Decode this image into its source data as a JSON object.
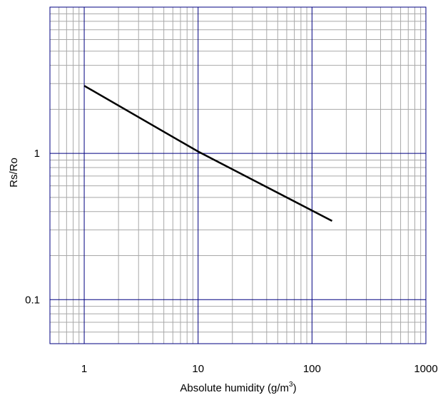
{
  "chart_data": {
    "type": "line",
    "title": "",
    "xlabel": "Absolute humidity (g/m",
    "xlabel_sup": "3",
    "xlabel_end": ")",
    "ylabel": "Rs/Ro",
    "x_scale": "log",
    "y_scale": "log",
    "xlim": [
      0.5,
      1000
    ],
    "ylim": [
      0.05,
      10
    ],
    "grid": true,
    "legend": "none",
    "x_ticks": [
      {
        "value": 1,
        "label": "1"
      },
      {
        "value": 10,
        "label": "10"
      },
      {
        "value": 100,
        "label": "100"
      },
      {
        "value": 1000,
        "label": "1000"
      }
    ],
    "y_ticks": [
      {
        "value": 1,
        "label": "1"
      },
      {
        "value": 0.1,
        "label": "0.1"
      }
    ],
    "series": [
      {
        "x": [
          1,
          10,
          150
        ],
        "y": [
          2.9,
          1.03,
          0.345
        ],
        "color": "#000000"
      }
    ],
    "colors": {
      "major_grid": "#000080",
      "minor_grid": "#a8a8a8",
      "line": "#000000"
    }
  }
}
